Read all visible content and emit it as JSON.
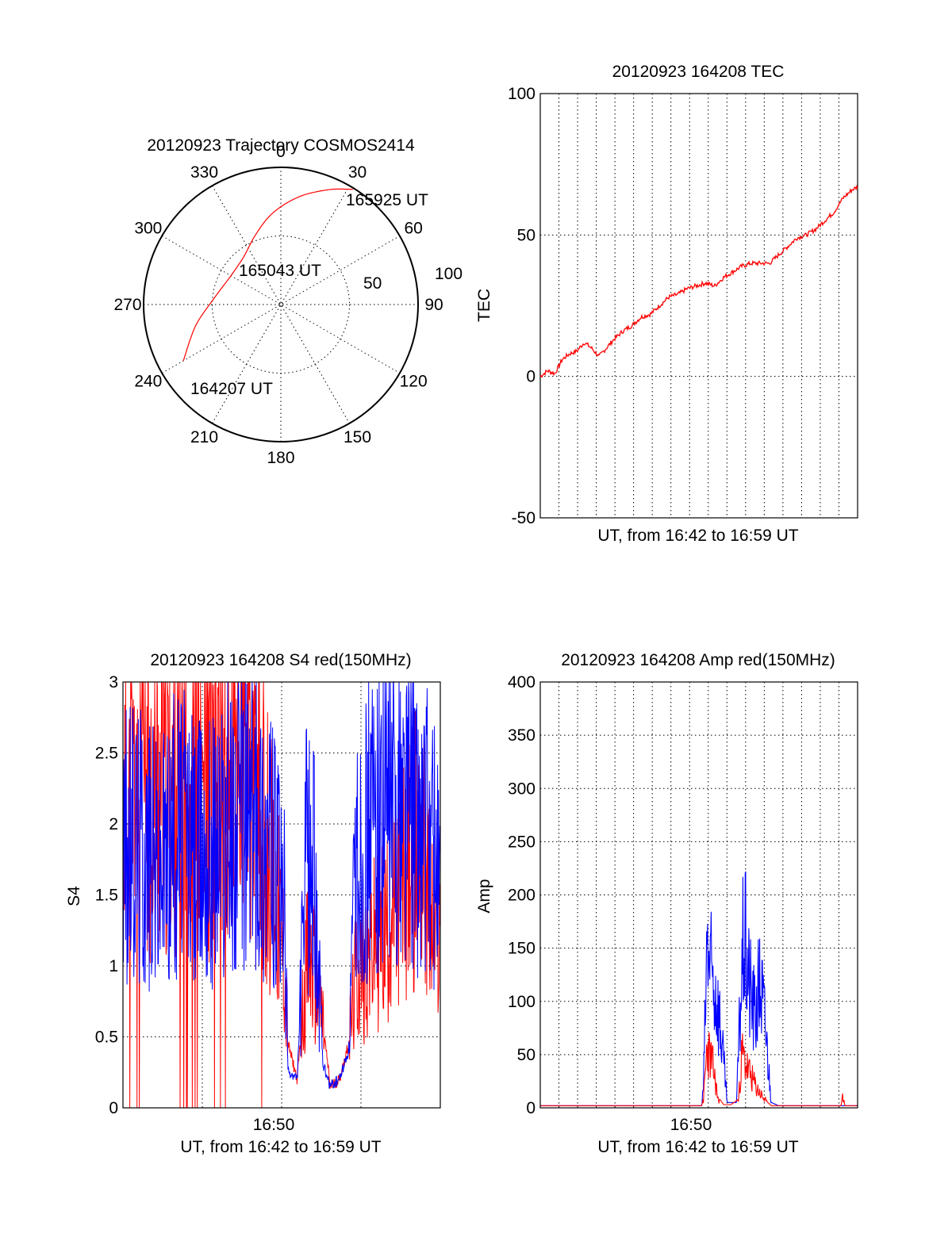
{
  "chart_data": [
    {
      "type": "polar",
      "title": "20120923 Trajectory COSMOS2414",
      "azimuth_labels": [
        "0",
        "30",
        "60",
        "90",
        "120",
        "150",
        "180",
        "210",
        "240",
        "270",
        "300",
        "330"
      ],
      "radial_labels": [
        "50",
        "100"
      ],
      "rlim": [
        0,
        100
      ],
      "grid": true,
      "series": [
        {
          "color": "#ff0000",
          "points": [
            {
              "az": 240,
              "r": 82
            },
            {
              "az": 256,
              "r": 64
            },
            {
              "az": 275,
              "r": 49
            },
            {
              "az": 300,
              "r": 42
            },
            {
              "az": 322,
              "r": 44
            },
            {
              "az": 340,
              "r": 54
            },
            {
              "az": 355,
              "r": 67
            },
            {
              "az": 10,
              "r": 80
            },
            {
              "az": 23,
              "r": 91
            },
            {
              "az": 32,
              "r": 99
            }
          ]
        }
      ],
      "annotations": [
        "165925 UT",
        "165043 UT",
        "164207 UT"
      ]
    },
    {
      "type": "line",
      "title": "20120923 164208 TEC",
      "xlabel": "UT, from 16:42 to 16:59 UT",
      "ylabel": "TEC",
      "xlim": [
        0,
        17.3
      ],
      "ylim": [
        -50,
        100
      ],
      "yticks": [
        "-50",
        "0",
        "50",
        "100"
      ],
      "grid": true,
      "series": [
        {
          "color": "#ff0000",
          "x": [
            0,
            0.4,
            0.8,
            1.2,
            1.6,
            2.0,
            2.4,
            2.8,
            3.2,
            3.6,
            4.0,
            4.5,
            5.0,
            5.5,
            6.0,
            6.5,
            7.0,
            7.5,
            8.0,
            8.5,
            9.0,
            9.5,
            10.0,
            10.5,
            11.0,
            11.5,
            12.0,
            12.5,
            13.0,
            13.5,
            14.0,
            14.5,
            15.0,
            15.5,
            16.0,
            16.5,
            17.0,
            17.3
          ],
          "y": [
            0,
            2,
            1,
            6,
            8,
            9,
            12,
            10,
            7,
            10,
            13,
            16,
            18,
            21,
            22,
            25,
            28,
            29,
            31,
            32,
            33,
            32,
            35,
            37,
            39,
            40,
            40,
            40,
            43,
            46,
            49,
            50,
            52,
            55,
            58,
            63,
            66,
            67
          ]
        }
      ]
    },
    {
      "type": "line",
      "title": "20120923 164208 S4 red(150MHz)",
      "xlabel": "UT, from 16:42 to 16:59 UT",
      "ylabel": "S4",
      "xtick_labels": [
        "16:50"
      ],
      "xlim": [
        0,
        17.3
      ],
      "ylim": [
        0,
        3
      ],
      "yticks": [
        "0",
        "0.5",
        "1",
        "1.5",
        "2",
        "2.5",
        "3"
      ],
      "grid": true,
      "series": [
        {
          "color": "#ff0000",
          "x": [
            0,
            1,
            2,
            3,
            4,
            5,
            6,
            7,
            8,
            8.4,
            8.8,
            9.0,
            9.5,
            10.0,
            10.4,
            10.9,
            11.3,
            11.8,
            12.3,
            12.7,
            13.5,
            14.5,
            15.5,
            16.2,
            16.8,
            17.3
          ],
          "y": [
            2.1,
            2.3,
            2.2,
            2.4,
            2.3,
            2.2,
            2.4,
            2.3,
            1.8,
            1.4,
            1.0,
            0.45,
            0.2,
            1.0,
            0.95,
            0.6,
            0.15,
            0.2,
            0.45,
            0.9,
            1.1,
            1.3,
            1.7,
            1.9,
            1.3,
            1.2
          ]
        },
        {
          "color": "#0000ff",
          "x": [
            0,
            1,
            2,
            3,
            4,
            5,
            6,
            7,
            8,
            8.4,
            8.8,
            9.0,
            9.5,
            10.0,
            10.4,
            10.9,
            11.3,
            11.8,
            12.3,
            12.7,
            13.5,
            14.5,
            15.5,
            16.2,
            16.8,
            17.3
          ],
          "y": [
            1.8,
            1.9,
            1.7,
            2.0,
            1.8,
            1.9,
            2.0,
            2.1,
            1.9,
            1.6,
            1.4,
            0.25,
            0.2,
            1.8,
            1.7,
            0.3,
            0.15,
            0.2,
            0.4,
            1.7,
            2.0,
            2.1,
            2.2,
            2.0,
            1.9,
            1.6
          ]
        }
      ]
    },
    {
      "type": "line",
      "title": "20120923 164208 Amp red(150MHz)",
      "xlabel": "UT, from 16:42 to 16:59 UT",
      "ylabel": "Amp",
      "xtick_labels": [
        "16:50"
      ],
      "xlim": [
        0,
        17.3
      ],
      "ylim": [
        0,
        400
      ],
      "yticks": [
        "0",
        "50",
        "100",
        "150",
        "200",
        "250",
        "300",
        "350",
        "400"
      ],
      "grid": true,
      "series": [
        {
          "color": "#ff0000",
          "x": [
            0,
            8.8,
            8.9,
            9.1,
            9.4,
            9.7,
            10.0,
            10.4,
            10.8,
            11.0,
            11.3,
            11.8,
            12.4,
            12.6,
            14.0,
            16.4,
            16.5,
            16.6,
            17.3
          ],
          "y": [
            2,
            2,
            10,
            80,
            55,
            10,
            3,
            3,
            8,
            70,
            50,
            25,
            5,
            2,
            2,
            2,
            15,
            2,
            2
          ]
        },
        {
          "color": "#0000ff",
          "x": [
            0,
            8.8,
            8.9,
            9.1,
            9.3,
            9.6,
            9.8,
            10.2,
            10.7,
            10.9,
            11.1,
            11.4,
            11.7,
            12.0,
            12.3,
            12.6,
            13.0,
            17.3
          ],
          "y": [
            2,
            2,
            30,
            215,
            170,
            150,
            110,
            5,
            5,
            130,
            225,
            160,
            120,
            165,
            100,
            5,
            2,
            2
          ]
        }
      ]
    }
  ]
}
